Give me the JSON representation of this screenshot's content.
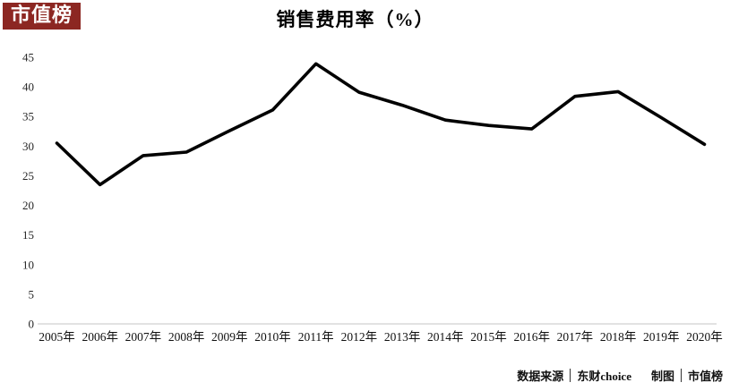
{
  "logo": {
    "text": "市值榜",
    "bg_color": "#8c2722",
    "text_color": "#ffffff"
  },
  "chart_data": {
    "type": "line",
    "title": "销售费用率（%）",
    "categories": [
      "2005年",
      "2006年",
      "2007年",
      "2008年",
      "2009年",
      "2010年",
      "2011年",
      "2012年",
      "2013年",
      "2014年",
      "2015年",
      "2016年",
      "2017年",
      "2018年",
      "2019年",
      "2020年"
    ],
    "values": [
      30.5,
      23.5,
      28.4,
      29.0,
      32.6,
      36.1,
      43.9,
      39.1,
      36.9,
      34.4,
      33.5,
      32.9,
      38.4,
      39.2,
      34.8,
      30.3
    ],
    "xlabel": "",
    "ylabel": "",
    "ylim": [
      0,
      45
    ],
    "ytick_step": 5,
    "grid": false,
    "legend": "none",
    "line_color": "#000000",
    "axis_line_color": "#d9d9d9",
    "tick_label_color": "#262626"
  },
  "footer": {
    "source_label": "数据来源",
    "source_value": "东财choice",
    "credit_label": "制图",
    "credit_value": "市值榜"
  }
}
